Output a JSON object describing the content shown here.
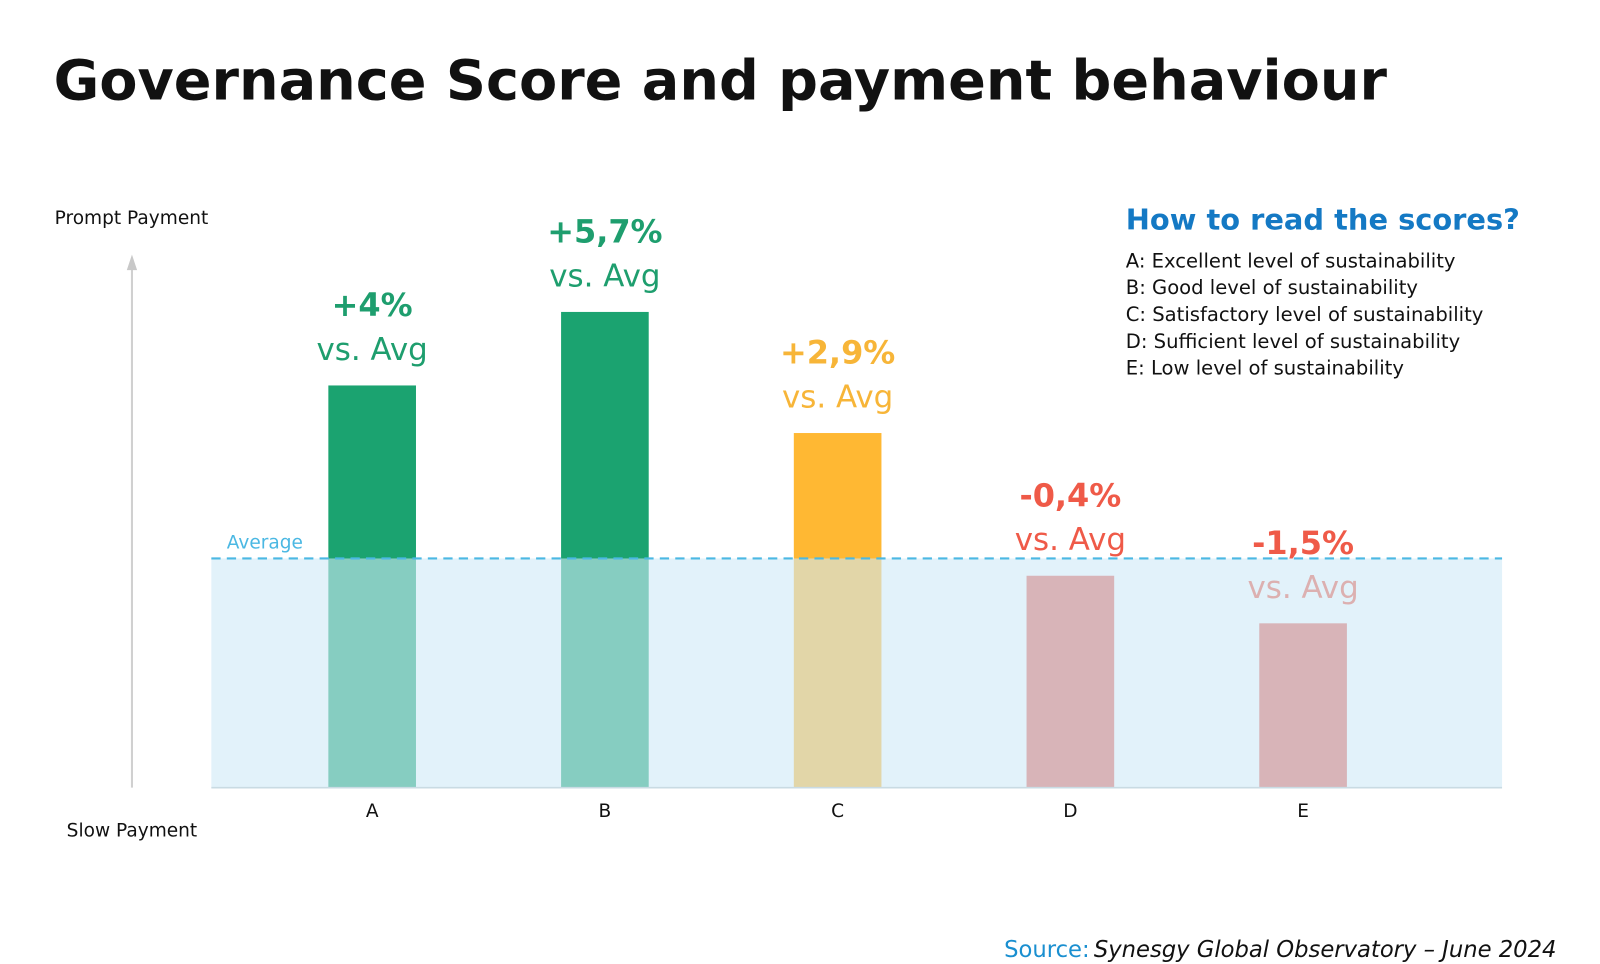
{
  "chart_data": {
    "type": "bar",
    "title": "Governance Score and payment behaviour",
    "y_axis_top_label": "Prompt Payment",
    "y_axis_bottom_label": "Slow Payment",
    "categories": [
      "A",
      "B",
      "C",
      "D",
      "E"
    ],
    "values": [
      4,
      5.7,
      2.9,
      -0.4,
      -1.5
    ],
    "value_labels": [
      "+4%",
      "+5,7%",
      "+2,9%",
      "-0,4%",
      "-1,5%"
    ],
    "comparison_label": "vs. Avg",
    "colors": [
      "#1ba370",
      "#1ba370",
      "#ffb833",
      "#e5645a",
      "#e5645a"
    ],
    "label_colors": [
      "#1e9e6e",
      "#1e9e6e",
      "#f7b538",
      "#ef5a48",
      "#ef5a48"
    ],
    "reference_line": {
      "label": "Average",
      "value": 0,
      "color": "#4bb8e3"
    },
    "ylim": [
      -5.3,
      7
    ],
    "legend": {
      "title": "How to read the scores?",
      "items": [
        "A: Excellent level of sustainability",
        "B: Good level of sustainability",
        "C: Satisfactory level of sustainability",
        "D: Sufficient level of sustainability",
        "E: Low level of sustainability"
      ]
    },
    "source": {
      "prefix": "Source:",
      "text": "Synesgy Global Observatory – June 2024"
    }
  }
}
